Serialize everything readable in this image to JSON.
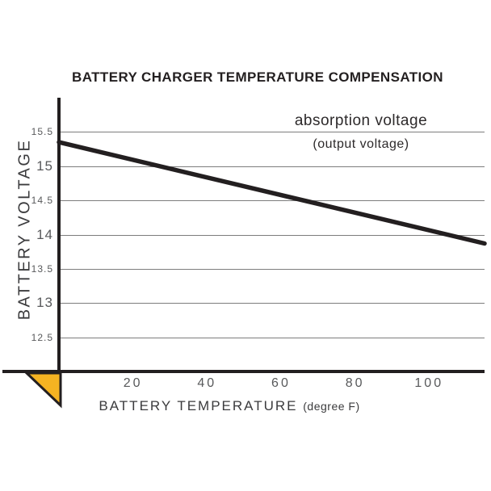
{
  "header": {
    "title": "BATTERY CHARGER TEMPERATURE COMPENSATION"
  },
  "axes": {
    "y_title": "BATTERY VOLTAGE",
    "x_title": "BATTERY TEMPERATURE",
    "x_unit": "(degree F)"
  },
  "annotation": {
    "line1": "absorption voltage",
    "line2": "(output voltage)"
  },
  "colors": {
    "ink": "#231f20",
    "grid": "#7d7d7d",
    "tick_text": "#58595b",
    "triangle_fill": "#f5b322",
    "background": "#ffffff"
  },
  "chart_data": {
    "type": "line",
    "title": "BATTERY CHARGER TEMPERATURE COMPENSATION",
    "xlabel": "BATTERY TEMPERATURE (degree F)",
    "ylabel": "BATTERY VOLTAGE",
    "xlim": [
      0,
      115
    ],
    "ylim": [
      12,
      16
    ],
    "xticks": [
      20,
      40,
      60,
      80,
      100
    ],
    "yticks": [
      12.5,
      13,
      13.5,
      14,
      14.5,
      15,
      15.5
    ],
    "grid": "horizontal gridlines at every 0.5 V",
    "legend_position": "annotation top-right inside plot",
    "series": [
      {
        "name": "absorption voltage (output voltage)",
        "points": [
          {
            "x": 0,
            "y": 15.35
          },
          {
            "x": 115,
            "y": 13.87
          }
        ]
      }
    ]
  }
}
